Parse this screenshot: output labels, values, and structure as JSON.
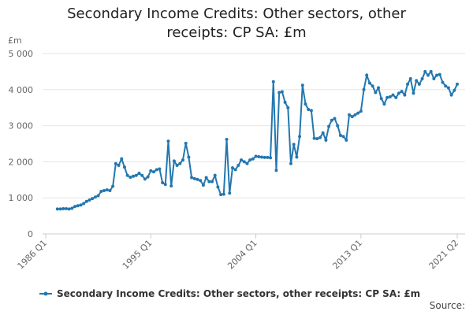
{
  "chart_data": {
    "type": "line",
    "title": "Secondary Income Credits: Other sectors, other receipts: CP SA: £m",
    "y_unit": "£m",
    "source": "Source:",
    "categories": [
      "1986 Q1",
      "1986 Q2",
      "1986 Q3",
      "1986 Q4",
      "1987 Q1",
      "1987 Q2",
      "1987 Q3",
      "1987 Q4",
      "1988 Q1",
      "1988 Q2",
      "1988 Q3",
      "1988 Q4",
      "1989 Q1",
      "1989 Q2",
      "1989 Q3",
      "1989 Q4",
      "1990 Q1",
      "1990 Q2",
      "1990 Q3",
      "1990 Q4",
      "1991 Q1",
      "1991 Q2",
      "1991 Q3",
      "1991 Q4",
      "1992 Q1",
      "1992 Q2",
      "1992 Q3",
      "1992 Q4",
      "1993 Q1",
      "1993 Q2",
      "1993 Q3",
      "1993 Q4",
      "1994 Q1",
      "1994 Q2",
      "1994 Q3",
      "1994 Q4",
      "1995 Q1",
      "1995 Q2",
      "1995 Q3",
      "1995 Q4",
      "1996 Q1",
      "1996 Q2",
      "1996 Q3",
      "1996 Q4",
      "1997 Q1",
      "1997 Q2",
      "1997 Q3",
      "1997 Q4",
      "1998 Q1",
      "1998 Q2",
      "1998 Q3",
      "1998 Q4",
      "1999 Q1",
      "1999 Q2",
      "1999 Q3",
      "1999 Q4",
      "2000 Q1",
      "2000 Q2",
      "2000 Q3",
      "2000 Q4",
      "2001 Q1",
      "2001 Q2",
      "2001 Q3",
      "2001 Q4",
      "2002 Q1",
      "2002 Q2",
      "2002 Q3",
      "2002 Q4",
      "2003 Q1",
      "2003 Q2",
      "2003 Q3",
      "2003 Q4",
      "2004 Q1",
      "2004 Q2",
      "2004 Q3",
      "2004 Q4",
      "2005 Q1",
      "2005 Q2",
      "2005 Q3",
      "2005 Q4",
      "2006 Q1",
      "2006 Q2",
      "2006 Q3",
      "2006 Q4",
      "2007 Q1",
      "2007 Q2",
      "2007 Q3",
      "2007 Q4",
      "2008 Q1",
      "2008 Q2",
      "2008 Q3",
      "2008 Q4",
      "2009 Q1",
      "2009 Q2",
      "2009 Q3",
      "2009 Q4",
      "2010 Q1",
      "2010 Q2",
      "2010 Q3",
      "2010 Q4",
      "2011 Q1",
      "2011 Q2",
      "2011 Q3",
      "2011 Q4",
      "2012 Q1",
      "2012 Q2",
      "2012 Q3",
      "2012 Q4",
      "2013 Q1",
      "2013 Q2",
      "2013 Q3",
      "2013 Q4",
      "2014 Q1",
      "2014 Q2",
      "2014 Q3",
      "2014 Q4",
      "2015 Q1",
      "2015 Q2",
      "2015 Q3",
      "2015 Q4",
      "2016 Q1",
      "2016 Q2",
      "2016 Q3",
      "2016 Q4",
      "2017 Q1",
      "2017 Q2",
      "2017 Q3",
      "2017 Q4",
      "2018 Q1",
      "2018 Q2",
      "2018 Q3",
      "2018 Q4",
      "2019 Q1",
      "2019 Q2",
      "2019 Q3",
      "2019 Q4",
      "2020 Q1",
      "2020 Q2",
      "2020 Q3",
      "2020 Q4",
      "2021 Q1",
      "2021 Q2"
    ],
    "series": [
      {
        "name": "Secondary Income Credits: Other sectors, other receipts: CP SA: £m",
        "color": "#2377b0",
        "values": [
          null,
          null,
          null,
          null,
          690,
          690,
          700,
          700,
          690,
          710,
          760,
          780,
          800,
          840,
          900,
          940,
          980,
          1020,
          1060,
          1180,
          1200,
          1220,
          1200,
          1320,
          1950,
          1900,
          2080,
          1850,
          1620,
          1570,
          1600,
          1620,
          1680,
          1620,
          1520,
          1580,
          1750,
          1720,
          1780,
          1800,
          1420,
          1370,
          2570,
          1330,
          2020,
          1900,
          1950,
          2050,
          2510,
          2130,
          1560,
          1530,
          1510,
          1480,
          1350,
          1560,
          1450,
          1450,
          1620,
          1300,
          1090,
          1100,
          2620,
          1130,
          1830,
          1780,
          1900,
          2050,
          2000,
          1950,
          2050,
          2080,
          2150,
          2140,
          2130,
          2120,
          2120,
          2110,
          4220,
          1760,
          3920,
          3940,
          3650,
          3500,
          1950,
          2480,
          2130,
          2700,
          4120,
          3600,
          3450,
          3420,
          2650,
          2640,
          2670,
          2800,
          2600,
          2980,
          3150,
          3200,
          3000,
          2730,
          2700,
          2600,
          3300,
          3250,
          3300,
          3350,
          3400,
          4000,
          4400,
          4180,
          4100,
          3920,
          4050,
          3750,
          3600,
          3780,
          3800,
          3850,
          3780,
          3900,
          3950,
          3850,
          4150,
          4300,
          3900,
          4250,
          4150,
          4300,
          4500,
          4400,
          4500,
          4300,
          4400,
          4420,
          4200,
          4100,
          4050,
          3850,
          3980,
          4150
        ]
      }
    ],
    "xticks": [
      "1986 Q1",
      "1995 Q1",
      "2004 Q1",
      "2013 Q1",
      "2021 Q2"
    ],
    "ylim": [
      0,
      5000
    ],
    "yticks": [
      0,
      {
        "value": 1000,
        "label": "1 000"
      },
      {
        "value": 2000,
        "label": "2 000"
      },
      {
        "value": 3000,
        "label": "3 000"
      },
      {
        "value": 4000,
        "label": "4 000"
      },
      {
        "value": 5000,
        "label": "5 000"
      }
    ],
    "grid": true
  }
}
